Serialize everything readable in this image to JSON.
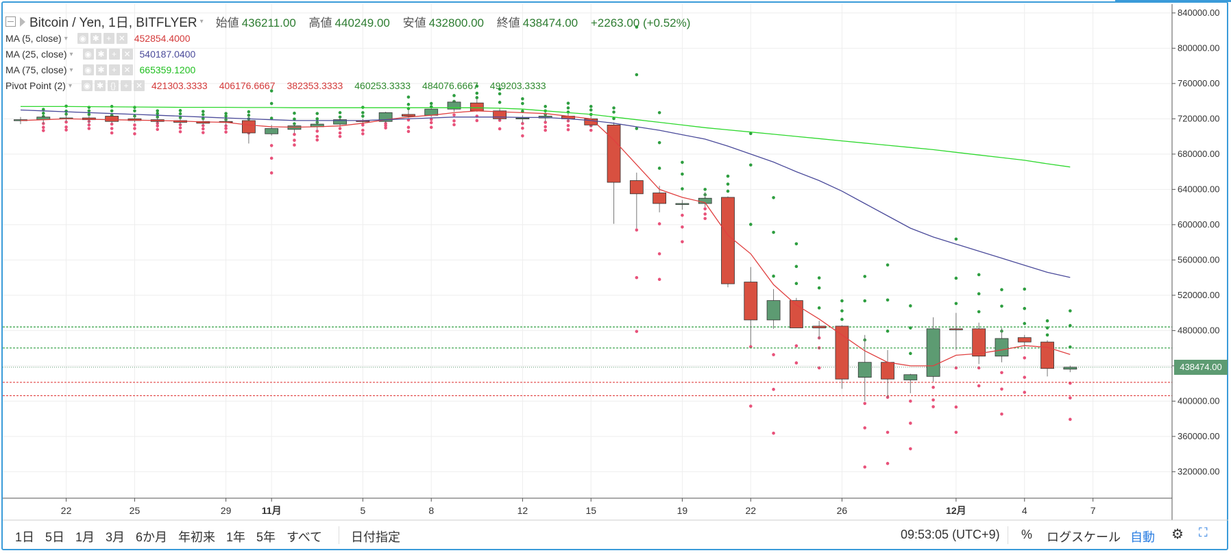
{
  "header": {
    "title": "Bitcoin / Yen, 1日, BITFLYER",
    "ohlc": [
      {
        "label": "始値",
        "value": "436211.00"
      },
      {
        "label": "高値",
        "value": "440249.00"
      },
      {
        "label": "安値",
        "value": "432800.00"
      },
      {
        "label": "終値",
        "value": "438474.00"
      }
    ],
    "change": "+2263.00 (+0.52%)"
  },
  "indicators": [
    {
      "name": "MA (5, close)",
      "values": [
        "452854.4000"
      ],
      "color": "#d43a3a"
    },
    {
      "name": "MA (25, close)",
      "values": [
        "540187.0400"
      ],
      "color": "#4a4a9a"
    },
    {
      "name": "MA (75, close)",
      "values": [
        "665359.1200"
      ],
      "color": "#1fbf1f"
    },
    {
      "name": "Pivot Point (2)",
      "values": [
        "421303.3333",
        "406176.6667",
        "382353.3333",
        "460253.3333",
        "484076.6667",
        "499203.3333"
      ],
      "value_colors": [
        "#d43a3a",
        "#d43a3a",
        "#d43a3a",
        "#2e8b2e",
        "#2e8b2e",
        "#2e8b2e"
      ]
    }
  ],
  "colors": {
    "up": "#5d9b72",
    "down": "#d85040",
    "ma5": "#e04040",
    "ma25": "#4a4a9a",
    "ma75": "#2ed82e",
    "pivot_support": "#e8527a",
    "pivot_resistance": "#2e9e40",
    "last_price": "#5d9b72"
  },
  "price_axis": {
    "ticks": [
      "840000.00",
      "800000.00",
      "760000.00",
      "720000.00",
      "680000.00",
      "640000.00",
      "600000.00",
      "560000.00",
      "520000.00",
      "480000.00",
      "440000.00",
      "400000.00",
      "360000.00",
      "320000.00"
    ],
    "last_price_label": "438474.00"
  },
  "time_axis": {
    "ticks": [
      "22",
      "25",
      "29",
      "11月",
      "5",
      "8",
      "12",
      "15",
      "19",
      "22",
      "26",
      "12月",
      "4",
      "7"
    ]
  },
  "bottom_bar": {
    "ranges": [
      "1日",
      "5日",
      "1月",
      "3月",
      "6か月",
      "年初来",
      "1年",
      "5年",
      "すべて"
    ],
    "date_picker": "日付指定",
    "clock": "09:53:05 (UTC+9)",
    "percent": "%",
    "log_scale": "ログスケール",
    "auto": "自動"
  },
  "chart_data": {
    "type": "candlestick",
    "title": "Bitcoin / Yen, 1日, BITFLYER",
    "ylim": [
      290000,
      850000
    ],
    "x_tick_labels": [
      "22",
      "25",
      "29",
      "11月",
      "5",
      "8",
      "12",
      "15",
      "19",
      "22",
      "26",
      "12月",
      "4",
      "7"
    ],
    "y_tick_labels": [
      "840000.00",
      "800000.00",
      "760000.00",
      "720000.00",
      "680000.00",
      "640000.00",
      "600000.00",
      "560000.00",
      "520000.00",
      "480000.00",
      "440000.00",
      "400000.00",
      "360000.00",
      "320000.00"
    ],
    "candles": [
      {
        "o": 718000,
        "h": 722000,
        "l": 714000,
        "c": 719000
      },
      {
        "o": 719000,
        "h": 723000,
        "l": 714000,
        "c": 722000
      },
      {
        "o": 721000,
        "h": 725000,
        "l": 717000,
        "c": 721000
      },
      {
        "o": 721000,
        "h": 724000,
        "l": 714000,
        "c": 719000
      },
      {
        "o": 723000,
        "h": 725000,
        "l": 715000,
        "c": 717000
      },
      {
        "o": 720000,
        "h": 723000,
        "l": 716000,
        "c": 718000
      },
      {
        "o": 719000,
        "h": 722000,
        "l": 714000,
        "c": 717000
      },
      {
        "o": 718000,
        "h": 721000,
        "l": 713000,
        "c": 716000
      },
      {
        "o": 717000,
        "h": 720000,
        "l": 713000,
        "c": 715000
      },
      {
        "o": 717000,
        "h": 720000,
        "l": 712000,
        "c": 716000
      },
      {
        "o": 718000,
        "h": 723000,
        "l": 692000,
        "c": 704000
      },
      {
        "o": 703000,
        "h": 713000,
        "l": 701000,
        "c": 709000
      },
      {
        "o": 708000,
        "h": 714000,
        "l": 704000,
        "c": 712000
      },
      {
        "o": 711000,
        "h": 717000,
        "l": 708000,
        "c": 714000
      },
      {
        "o": 714000,
        "h": 721000,
        "l": 711000,
        "c": 719000
      },
      {
        "o": 718000,
        "h": 720000,
        "l": 715000,
        "c": 717000
      },
      {
        "o": 717000,
        "h": 728000,
        "l": 715000,
        "c": 727000
      },
      {
        "o": 725000,
        "h": 730000,
        "l": 721000,
        "c": 723000
      },
      {
        "o": 724000,
        "h": 733000,
        "l": 722000,
        "c": 731000
      },
      {
        "o": 731000,
        "h": 741000,
        "l": 728000,
        "c": 739000
      },
      {
        "o": 738000,
        "h": 743000,
        "l": 728000,
        "c": 729000
      },
      {
        "o": 729000,
        "h": 732000,
        "l": 718000,
        "c": 720000
      },
      {
        "o": 720000,
        "h": 724000,
        "l": 715000,
        "c": 721000
      },
      {
        "o": 721000,
        "h": 727000,
        "l": 717000,
        "c": 723000
      },
      {
        "o": 723000,
        "h": 726000,
        "l": 717000,
        "c": 720000
      },
      {
        "o": 720000,
        "h": 723000,
        "l": 711000,
        "c": 713000
      },
      {
        "o": 713000,
        "h": 716000,
        "l": 601000,
        "c": 648000
      },
      {
        "o": 650000,
        "h": 659000,
        "l": 596000,
        "c": 635000
      },
      {
        "o": 636000,
        "h": 644000,
        "l": 614000,
        "c": 624000
      },
      {
        "o": 623000,
        "h": 628000,
        "l": 617000,
        "c": 624000
      },
      {
        "o": 624000,
        "h": 637000,
        "l": 620000,
        "c": 630000
      },
      {
        "o": 631000,
        "h": 632000,
        "l": 529000,
        "c": 533000
      },
      {
        "o": 535000,
        "h": 552000,
        "l": 463000,
        "c": 492000
      },
      {
        "o": 492000,
        "h": 527000,
        "l": 482000,
        "c": 514000
      },
      {
        "o": 514000,
        "h": 517000,
        "l": 483000,
        "c": 483000
      },
      {
        "o": 485000,
        "h": 491000,
        "l": 470000,
        "c": 483000
      },
      {
        "o": 485000,
        "h": 486000,
        "l": 414000,
        "c": 425000
      },
      {
        "o": 427000,
        "h": 475000,
        "l": 400000,
        "c": 444000
      },
      {
        "o": 444000,
        "h": 458000,
        "l": 404000,
        "c": 425000
      },
      {
        "o": 424000,
        "h": 431000,
        "l": 409000,
        "c": 430000
      },
      {
        "o": 428000,
        "h": 495000,
        "l": 422000,
        "c": 482000
      },
      {
        "o": 482000,
        "h": 500000,
        "l": 458000,
        "c": 481000
      },
      {
        "o": 482000,
        "h": 489000,
        "l": 442000,
        "c": 451000
      },
      {
        "o": 451000,
        "h": 483000,
        "l": 444000,
        "c": 471000
      },
      {
        "o": 472000,
        "h": 475000,
        "l": 459000,
        "c": 467000
      },
      {
        "o": 467000,
        "h": 469000,
        "l": 428000,
        "c": 437000
      },
      {
        "o": 436211,
        "h": 440249,
        "l": 432800,
        "c": 438474
      }
    ],
    "series": [
      {
        "name": "MA (5, close)",
        "values": [
          718000,
          719000,
          720000,
          719500,
          719000,
          718500,
          718000,
          717500,
          716500,
          716000,
          713000,
          711000,
          710500,
          711000,
          712000,
          715000,
          719000,
          722000,
          724000,
          727000,
          729000,
          728000,
          727000,
          726000,
          723000,
          720000,
          696000,
          668000,
          640000,
          631000,
          625000,
          588000,
          567000,
          532000,
          509000,
          493000,
          475000,
          457000,
          444000,
          440000,
          440000,
          452000,
          454000,
          458000,
          463000,
          461000,
          452854
        ]
      },
      {
        "name": "MA (25, close)",
        "values": [
          730000,
          729000,
          728000,
          727000,
          726000,
          725000,
          724000,
          723000,
          722000,
          721000,
          720000,
          719000,
          718000,
          718000,
          718000,
          718000,
          719000,
          720000,
          721000,
          722000,
          722000,
          722000,
          721500,
          721500,
          720000,
          718000,
          715000,
          711000,
          707000,
          702000,
          697000,
          689000,
          680000,
          671000,
          660000,
          650000,
          638000,
          624000,
          610000,
          596000,
          586000,
          578000,
          570000,
          562000,
          554000,
          546000,
          540187
        ]
      },
      {
        "name": "MA (75, close)",
        "values": [
          734000,
          734000,
          734000,
          733800,
          733600,
          733400,
          733200,
          733000,
          733000,
          733000,
          732800,
          732800,
          732600,
          732600,
          732600,
          732600,
          732600,
          732600,
          732600,
          732600,
          732500,
          732000,
          731000,
          729000,
          727000,
          725000,
          722000,
          719000,
          716000,
          713000,
          710000,
          707500,
          705000,
          702500,
          700000,
          697500,
          695000,
          692500,
          690000,
          687500,
          685000,
          682000,
          679000,
          676000,
          673000,
          669000,
          665359
        ]
      }
    ],
    "pivot_levels": {
      "s1": 421303.3333,
      "s2": 406176.6667,
      "s3": 382353.3333,
      "r1": 460253.3333,
      "r2": 484076.6667,
      "r3": 499203.3333
    },
    "last_price": 438474,
    "grid": true
  }
}
